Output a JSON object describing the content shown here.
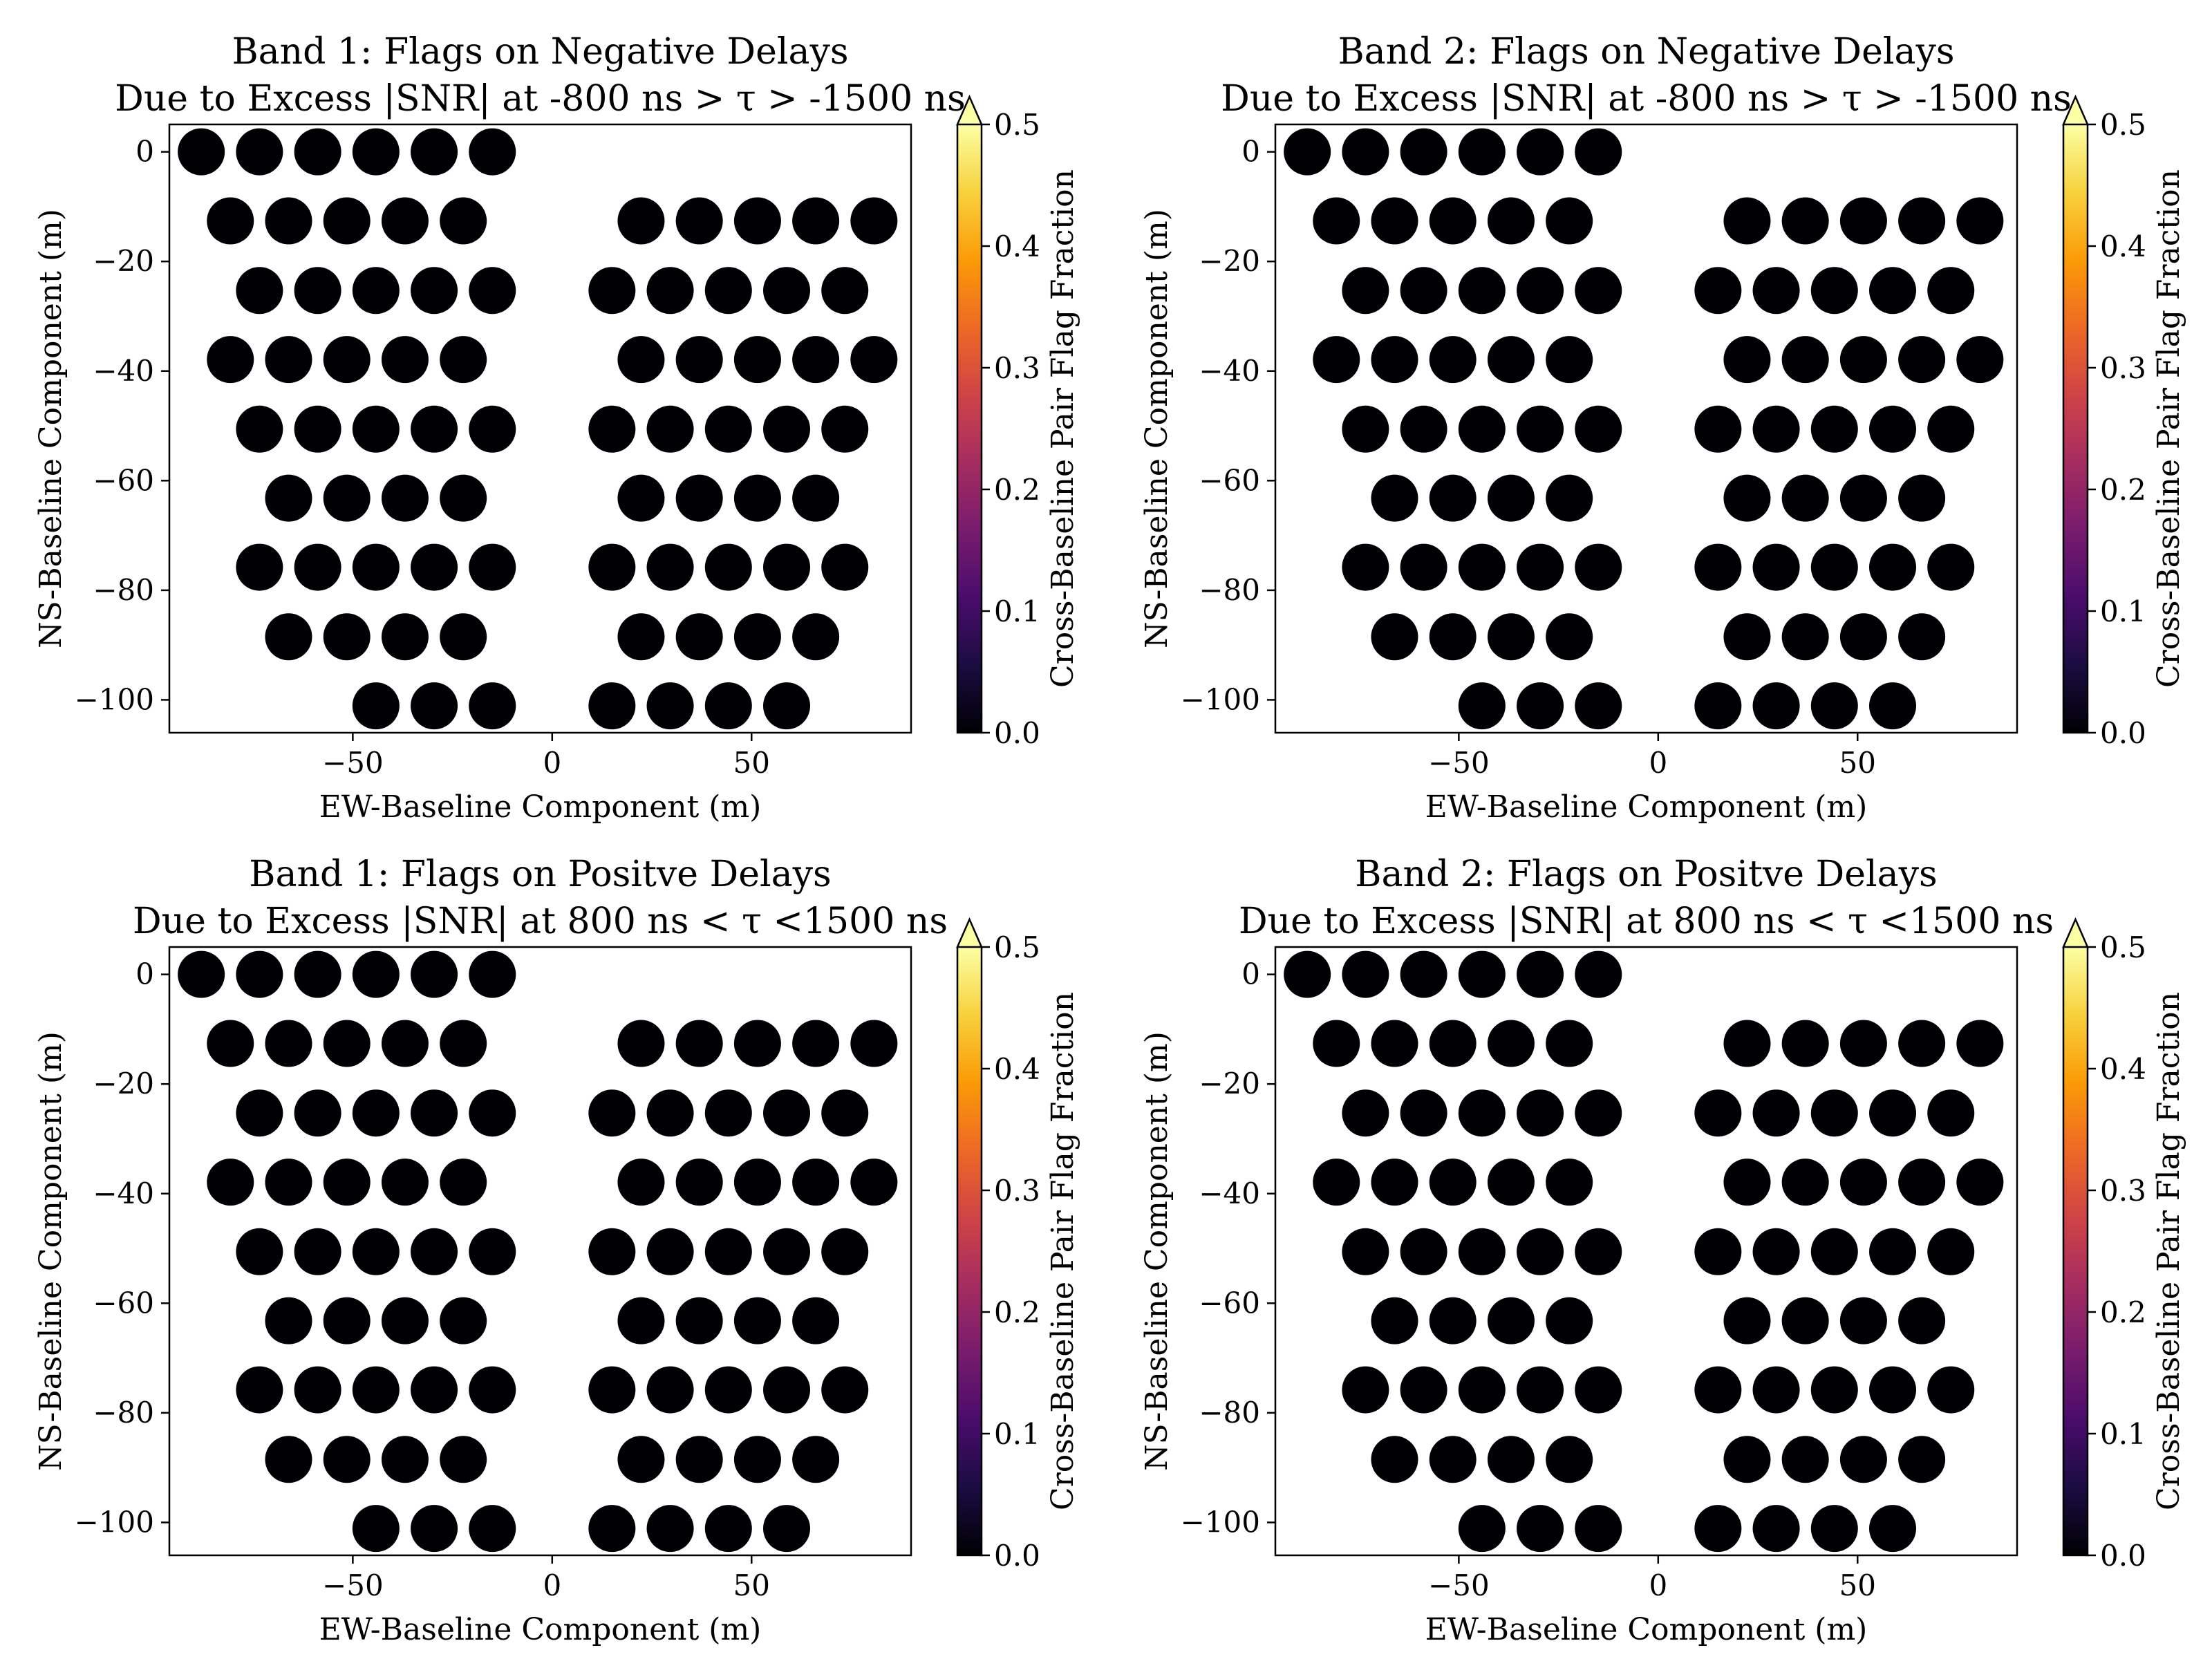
{
  "colorbar": {
    "label": "Cross-Baseline Pair Flag Fraction",
    "ticks": [
      "0.0",
      "0.1",
      "0.2",
      "0.3",
      "0.4",
      "0.5"
    ],
    "range": [
      0,
      0.5
    ],
    "colormap": "inferno",
    "extend": "max",
    "stops": [
      "#000004",
      "#1b0c41",
      "#4a0c6b",
      "#781c6d",
      "#a52c60",
      "#cf4446",
      "#ed6925",
      "#fb9b06",
      "#f7d13d",
      "#fcffa4"
    ]
  },
  "chart_data": [
    {
      "type": "scatter",
      "title_line1": "Band 1: Flags on Negative Delays",
      "title_line2": "Due to Excess |SNR| at -800 ns > τ > -1500 ns",
      "xlabel": "EW-Baseline Component (m)",
      "ylabel": "NS-Baseline Component (m)",
      "xlim": [
        -96,
        90
      ],
      "ylim": [
        -106,
        5
      ],
      "xticks": [
        -50,
        0,
        50
      ],
      "yticks": [
        0,
        -20,
        -40,
        -60,
        -80,
        -100
      ],
      "flag_fraction": 0.0
    },
    {
      "type": "scatter",
      "title_line1": "Band 2: Flags on Negative Delays",
      "title_line2": "Due to Excess |SNR| at -800 ns > τ > -1500 ns",
      "xlabel": "EW-Baseline Component (m)",
      "ylabel": "NS-Baseline Component (m)",
      "xlim": [
        -96,
        90
      ],
      "ylim": [
        -106,
        5
      ],
      "xticks": [
        -50,
        0,
        50
      ],
      "yticks": [
        0,
        -20,
        -40,
        -60,
        -80,
        -100
      ],
      "flag_fraction": 0.0
    },
    {
      "type": "scatter",
      "title_line1": "Band 1: Flags on Positve Delays",
      "title_line2": "Due to Excess |SNR| at 800 ns < τ <1500 ns",
      "xlabel": "EW-Baseline Component (m)",
      "ylabel": "NS-Baseline Component (m)",
      "xlim": [
        -96,
        90
      ],
      "ylim": [
        -106,
        5
      ],
      "xticks": [
        -50,
        0,
        50
      ],
      "yticks": [
        0,
        -20,
        -40,
        -60,
        -80,
        -100
      ],
      "flag_fraction": 0.0
    },
    {
      "type": "scatter",
      "title_line1": "Band 2: Flags on Positve Delays",
      "title_line2": "Due to Excess |SNR| at 800 ns < τ <1500 ns",
      "xlabel": "EW-Baseline Component (m)",
      "ylabel": "NS-Baseline Component (m)",
      "xlim": [
        -96,
        90
      ],
      "ylim": [
        -106,
        5
      ],
      "xticks": [
        -50,
        0,
        50
      ],
      "yticks": [
        0,
        -20,
        -40,
        -60,
        -80,
        -100
      ],
      "flag_fraction": 0.0
    }
  ],
  "baseline_rows": [
    {
      "y": 0,
      "x": [
        -88,
        -73.4,
        -58.8,
        -44.2,
        -29.6,
        -15
      ]
    },
    {
      "y": -12.6,
      "x": [
        -80.7,
        -66.1,
        -51.5,
        -36.9,
        -22.3,
        22.3,
        36.9,
        51.5,
        66.1,
        80.7
      ]
    },
    {
      "y": -25.3,
      "x": [
        -73.4,
        -58.8,
        -44.2,
        -29.6,
        -15,
        15,
        29.6,
        44.2,
        58.8,
        73.4
      ]
    },
    {
      "y": -37.9,
      "x": [
        -80.7,
        -66.1,
        -51.5,
        -36.9,
        -22.3,
        22.3,
        36.9,
        51.5,
        66.1,
        80.7
      ]
    },
    {
      "y": -50.6,
      "x": [
        -73.4,
        -58.8,
        -44.2,
        -29.6,
        -15,
        15,
        29.6,
        44.2,
        58.8,
        73.4
      ]
    },
    {
      "y": -63.2,
      "x": [
        -66.1,
        -51.5,
        -36.9,
        -22.3,
        22.3,
        36.9,
        51.5,
        66.1
      ]
    },
    {
      "y": -75.8,
      "x": [
        -73.4,
        -58.8,
        -44.2,
        -29.6,
        -15,
        15,
        29.6,
        44.2,
        58.8,
        73.4
      ]
    },
    {
      "y": -88.5,
      "x": [
        -66.1,
        -51.5,
        -36.9,
        -22.3,
        22.3,
        36.9,
        51.5,
        66.1
      ]
    },
    {
      "y": -101.1,
      "x": [
        -44.2,
        -29.6,
        -15,
        15,
        29.6,
        44.2,
        58.8
      ]
    }
  ]
}
